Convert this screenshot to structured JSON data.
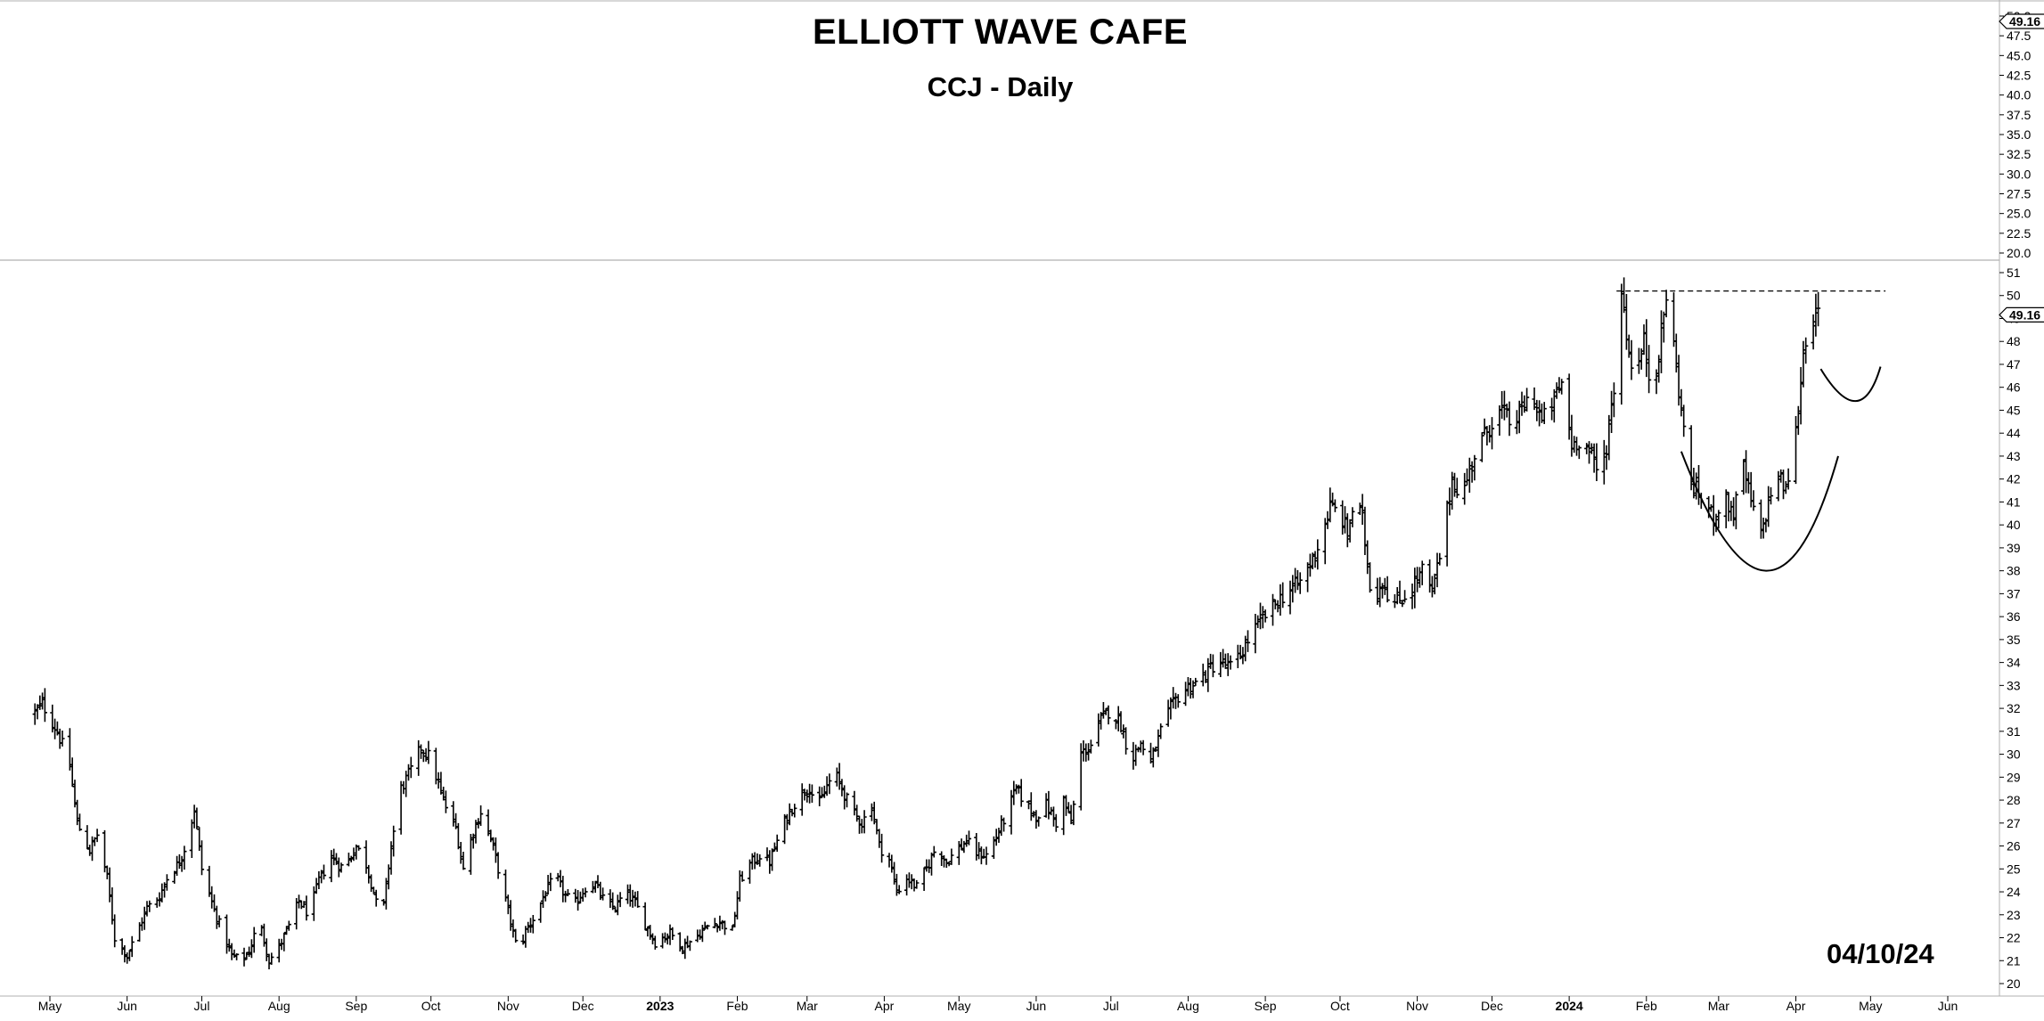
{
  "chart": {
    "title": "ELLIOTT WAVE CAFE",
    "subtitle": "CCJ - Daily",
    "date_stamp": "04/10/24"
  },
  "chart_data": {
    "type": "ohlc",
    "title": "ELLIOTT WAVE CAFE",
    "subtitle": "CCJ - Daily",
    "ticker": "CCJ",
    "interval": "Daily",
    "x_tick_labels": [
      "May",
      "Jun",
      "Jul",
      "Aug",
      "Sep",
      "Oct",
      "Nov",
      "Dec",
      "2023",
      "Feb",
      "Mar",
      "Apr",
      "May",
      "Jun",
      "Jul",
      "Aug",
      "Sep",
      "Oct",
      "Nov",
      "Dec",
      "2024",
      "Feb",
      "Mar",
      "Apr",
      "May",
      "Jun"
    ],
    "x_range": [
      "2022-04-25",
      "2024-06-15"
    ],
    "upper_panel": {
      "y_ticks": [
        20.0,
        22.5,
        25.0,
        27.5,
        30.0,
        32.5,
        35.0,
        37.5,
        40.0,
        42.5,
        45.0,
        47.5,
        50.0
      ],
      "ylim": [
        20.0,
        50.0
      ],
      "last_value_label": "49.16"
    },
    "lower_panel": {
      "y_ticks": [
        20,
        21,
        22,
        23,
        24,
        25,
        26,
        27,
        28,
        29,
        30,
        31,
        32,
        33,
        34,
        35,
        36,
        37,
        38,
        39,
        40,
        41,
        42,
        43,
        44,
        45,
        46,
        47,
        48,
        49,
        50,
        51
      ],
      "ylim": [
        19.7,
        51.2
      ],
      "last_value_label": "49.16",
      "price_path": [
        [
          "2022-04-25",
          31.8
        ],
        [
          "2022-04-28",
          32.2
        ],
        [
          "2022-05-04",
          31.0
        ],
        [
          "2022-05-09",
          29.5
        ],
        [
          "2022-05-12",
          27.0
        ],
        [
          "2022-05-17",
          25.8
        ],
        [
          "2022-05-20",
          26.5
        ],
        [
          "2022-05-24",
          24.6
        ],
        [
          "2022-05-27",
          22.0
        ],
        [
          "2022-06-01",
          21.2
        ],
        [
          "2022-06-06",
          22.5
        ],
        [
          "2022-06-09",
          23.3
        ],
        [
          "2022-06-14",
          23.8
        ],
        [
          "2022-06-17",
          24.6
        ],
        [
          "2022-06-22",
          25.3
        ],
        [
          "2022-06-25",
          26.2
        ],
        [
          "2022-06-28",
          27.6
        ],
        [
          "2022-07-01",
          25.0
        ],
        [
          "2022-07-06",
          23.2
        ],
        [
          "2022-07-09",
          22.3
        ],
        [
          "2022-07-13",
          21.2
        ],
        [
          "2022-07-17",
          21.0
        ],
        [
          "2022-07-20",
          21.4
        ],
        [
          "2022-07-24",
          22.8
        ],
        [
          "2022-07-28",
          21.0
        ],
        [
          "2022-08-01",
          21.6
        ],
        [
          "2022-08-05",
          22.5
        ],
        [
          "2022-08-09",
          23.6
        ],
        [
          "2022-08-13",
          23.0
        ],
        [
          "2022-08-17",
          24.5
        ],
        [
          "2022-08-22",
          25.5
        ],
        [
          "2022-08-27",
          25.0
        ],
        [
          "2022-09-01",
          26.0
        ],
        [
          "2022-09-05",
          25.2
        ],
        [
          "2022-09-08",
          24.0
        ],
        [
          "2022-09-11",
          22.5
        ],
        [
          "2022-09-15",
          26.0
        ],
        [
          "2022-09-19",
          28.5
        ],
        [
          "2022-09-23",
          29.3
        ],
        [
          "2022-09-27",
          30.3
        ],
        [
          "2022-10-01",
          29.8
        ],
        [
          "2022-10-05",
          28.3
        ],
        [
          "2022-10-08",
          27.4
        ],
        [
          "2022-10-11",
          26.8
        ],
        [
          "2022-10-14",
          25.0
        ],
        [
          "2022-10-17",
          26.3
        ],
        [
          "2022-10-21",
          27.5
        ],
        [
          "2022-10-25",
          26.3
        ],
        [
          "2022-10-28",
          25.0
        ],
        [
          "2022-11-05",
          21.3
        ],
        [
          "2022-11-08",
          22.3
        ],
        [
          "2022-11-12",
          23.0
        ],
        [
          "2022-11-16",
          24.0
        ],
        [
          "2022-11-20",
          24.7
        ],
        [
          "2022-11-24",
          23.8
        ],
        [
          "2022-11-28",
          23.5
        ],
        [
          "2022-12-02",
          24.2
        ],
        [
          "2022-12-06",
          24.3
        ],
        [
          "2022-12-10",
          23.5
        ],
        [
          "2022-12-14",
          23.3
        ],
        [
          "2022-12-18",
          24.0
        ],
        [
          "2022-12-22",
          23.5
        ],
        [
          "2022-12-26",
          22.6
        ],
        [
          "2022-12-30",
          21.8
        ],
        [
          "2023-01-05",
          22.2
        ],
        [
          "2023-01-10",
          21.6
        ],
        [
          "2023-01-15",
          22.0
        ],
        [
          "2023-01-20",
          22.5
        ],
        [
          "2023-01-25",
          22.7
        ],
        [
          "2023-01-30",
          22.3
        ],
        [
          "2023-02-02",
          24.5
        ],
        [
          "2023-02-06",
          25.2
        ],
        [
          "2023-02-10",
          25.6
        ],
        [
          "2023-02-14",
          25.3
        ],
        [
          "2023-02-18",
          26.5
        ],
        [
          "2023-02-22",
          27.5
        ],
        [
          "2023-02-26",
          28.2
        ],
        [
          "2023-03-02",
          28.6
        ],
        [
          "2023-03-05",
          27.6
        ],
        [
          "2023-03-09",
          28.6
        ],
        [
          "2023-03-12",
          29.2
        ],
        [
          "2023-03-15",
          28.5
        ],
        [
          "2023-03-19",
          27.5
        ],
        [
          "2023-03-23",
          27.0
        ],
        [
          "2023-03-27",
          27.8
        ],
        [
          "2023-03-30",
          26.0
        ],
        [
          "2023-04-03",
          25.4
        ],
        [
          "2023-04-06",
          24.0
        ],
        [
          "2023-04-10",
          24.6
        ],
        [
          "2023-04-14",
          24.2
        ],
        [
          "2023-04-18",
          25.0
        ],
        [
          "2023-04-22",
          26.0
        ],
        [
          "2023-04-26",
          25.3
        ],
        [
          "2023-04-30",
          25.8
        ],
        [
          "2023-05-04",
          26.2
        ],
        [
          "2023-05-08",
          25.7
        ],
        [
          "2023-05-12",
          25.6
        ],
        [
          "2023-05-16",
          26.4
        ],
        [
          "2023-05-20",
          27.4
        ],
        [
          "2023-05-24",
          28.5
        ],
        [
          "2023-05-28",
          27.8
        ],
        [
          "2023-06-01",
          27.3
        ],
        [
          "2023-06-05",
          27.8
        ],
        [
          "2023-06-09",
          27.0
        ],
        [
          "2023-06-12",
          28.0
        ],
        [
          "2023-06-15",
          27.0
        ],
        [
          "2023-06-19",
          30.0
        ],
        [
          "2023-06-23",
          30.4
        ],
        [
          "2023-06-27",
          31.5
        ],
        [
          "2023-07-01",
          32.0
        ],
        [
          "2023-07-05",
          31.3
        ],
        [
          "2023-07-09",
          29.7
        ],
        [
          "2023-07-13",
          30.5
        ],
        [
          "2023-07-17",
          29.6
        ],
        [
          "2023-07-21",
          31.0
        ],
        [
          "2023-07-25",
          32.0
        ],
        [
          "2023-07-29",
          32.7
        ],
        [
          "2023-08-02",
          33.0
        ],
        [
          "2023-08-06",
          33.2
        ],
        [
          "2023-08-10",
          33.8
        ],
        [
          "2023-08-14",
          34.0
        ],
        [
          "2023-08-18",
          33.8
        ],
        [
          "2023-08-22",
          34.3
        ],
        [
          "2023-08-26",
          35.2
        ],
        [
          "2023-08-30",
          35.8
        ],
        [
          "2023-09-03",
          36.3
        ],
        [
          "2023-09-07",
          36.8
        ],
        [
          "2023-09-11",
          37.2
        ],
        [
          "2023-09-15",
          37.5
        ],
        [
          "2023-09-19",
          38.3
        ],
        [
          "2023-09-23",
          39.3
        ],
        [
          "2023-09-27",
          40.8
        ],
        [
          "2023-10-01",
          40.5
        ],
        [
          "2023-10-04",
          39.6
        ],
        [
          "2023-10-07",
          41.2
        ],
        [
          "2023-10-10",
          40.2
        ],
        [
          "2023-10-14",
          36.5
        ],
        [
          "2023-10-18",
          37.6
        ],
        [
          "2023-10-22",
          36.5
        ],
        [
          "2023-10-26",
          36.8
        ],
        [
          "2023-10-30",
          37.3
        ],
        [
          "2023-11-03",
          38.0
        ],
        [
          "2023-11-07",
          37.0
        ],
        [
          "2023-11-11",
          39.2
        ],
        [
          "2023-11-15",
          42.0
        ],
        [
          "2023-11-19",
          41.2
        ],
        [
          "2023-11-23",
          42.8
        ],
        [
          "2023-11-27",
          43.7
        ],
        [
          "2023-12-01",
          44.5
        ],
        [
          "2023-12-05",
          45.0
        ],
        [
          "2023-12-09",
          44.3
        ],
        [
          "2023-12-13",
          45.0
        ],
        [
          "2023-12-17",
          45.8
        ],
        [
          "2023-12-21",
          44.5
        ],
        [
          "2023-12-25",
          45.2
        ],
        [
          "2023-12-29",
          46.2
        ],
        [
          "2024-01-02",
          43.5
        ],
        [
          "2024-01-06",
          43.8
        ],
        [
          "2024-01-10",
          43.0
        ],
        [
          "2024-01-13",
          42.0
        ],
        [
          "2024-01-16",
          43.5
        ],
        [
          "2024-01-19",
          46.0
        ],
        [
          "2024-01-22",
          50.3
        ],
        [
          "2024-01-25",
          47.5
        ],
        [
          "2024-01-28",
          46.5
        ],
        [
          "2024-01-31",
          48.0
        ],
        [
          "2024-02-03",
          45.8
        ],
        [
          "2024-02-06",
          47.5
        ],
        [
          "2024-02-09",
          50.0
        ],
        [
          "2024-02-12",
          47.8
        ],
        [
          "2024-02-15",
          45.0
        ],
        [
          "2024-02-18",
          42.0
        ],
        [
          "2024-02-21",
          41.5
        ],
        [
          "2024-02-24",
          41.0
        ],
        [
          "2024-02-28",
          40.3
        ],
        [
          "2024-03-03",
          41.2
        ],
        [
          "2024-03-07",
          40.5
        ],
        [
          "2024-03-11",
          42.5
        ],
        [
          "2024-03-14",
          41.0
        ],
        [
          "2024-03-18",
          39.5
        ],
        [
          "2024-03-21",
          41.0
        ],
        [
          "2024-03-24",
          42.3
        ],
        [
          "2024-03-28",
          41.5
        ],
        [
          "2024-04-01",
          44.0
        ],
        [
          "2024-04-04",
          47.5
        ],
        [
          "2024-04-07",
          49.5
        ],
        [
          "2024-04-09",
          49.0
        ],
        [
          "2024-04-10",
          49.16
        ]
      ]
    },
    "annotations": {
      "resistance_line": {
        "y": 50.2,
        "from": "2024-01-20",
        "to": "2024-05-07",
        "style": "dashed"
      },
      "cup_curve": {
        "from": [
          "2024-02-15",
          43.2
        ],
        "bottom": [
          "2024-03-20",
          38.0
        ],
        "to": [
          "2024-04-18",
          43.0
        ]
      },
      "handle_curve": {
        "from": [
          "2024-04-11",
          46.8
        ],
        "bottom": [
          "2024-04-25",
          45.4
        ],
        "to": [
          "2024-05-05",
          46.9
        ]
      }
    },
    "grid": false,
    "legend": "none"
  }
}
